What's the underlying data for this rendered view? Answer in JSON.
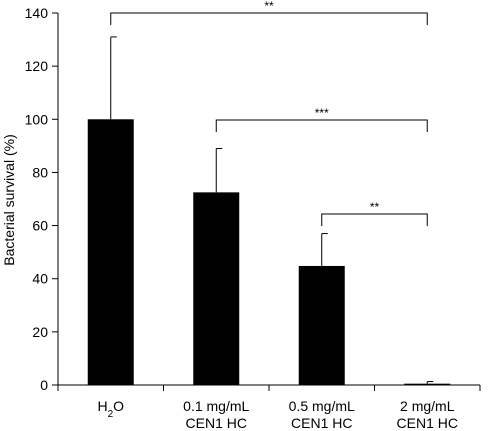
{
  "chart_data": {
    "type": "bar",
    "title": "",
    "xlabel": "",
    "ylabel": "Bacterial survival (%)",
    "ylim": [
      0,
      140
    ],
    "yticks": [
      0,
      20,
      40,
      60,
      80,
      100,
      120,
      140
    ],
    "grid": false,
    "categories": [
      {
        "line1": "H",
        "sub": "2",
        "line1_tail": "O",
        "line2": ""
      },
      {
        "line1": "0.1 mg/mL",
        "sub": "",
        "line1_tail": "",
        "line2": "CEN1 HC"
      },
      {
        "line1": "0.5 mg/mL",
        "sub": "",
        "line1_tail": "",
        "line2": "CEN1 HC"
      },
      {
        "line1": "2 mg/mL",
        "sub": "",
        "line1_tail": "",
        "line2": "CEN1 HC"
      }
    ],
    "values": [
      100,
      72.5,
      44.8,
      0.5
    ],
    "error_plus": [
      31,
      16.5,
      12.2,
      0.8
    ],
    "bar_color": "#000000",
    "significance": [
      {
        "from": 0,
        "to": 3,
        "label": "**"
      },
      {
        "from": 1,
        "to": 3,
        "label": "***"
      },
      {
        "from": 2,
        "to": 3,
        "label": "**"
      }
    ]
  }
}
